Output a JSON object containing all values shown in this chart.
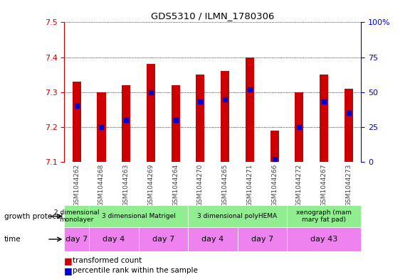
{
  "title": "GDS5310 / ILMN_1780306",
  "samples": [
    "GSM1044262",
    "GSM1044268",
    "GSM1044263",
    "GSM1044269",
    "GSM1044264",
    "GSM1044270",
    "GSM1044265",
    "GSM1044271",
    "GSM1044266",
    "GSM1044272",
    "GSM1044267",
    "GSM1044273"
  ],
  "transformed_counts": [
    7.33,
    7.3,
    7.32,
    7.38,
    7.32,
    7.35,
    7.36,
    7.4,
    7.19,
    7.3,
    7.35,
    7.31
  ],
  "percentile_ranks": [
    40,
    25,
    30,
    50,
    30,
    43,
    45,
    52,
    2,
    25,
    43,
    35
  ],
  "bar_bottom": 7.1,
  "ylim_left": [
    7.1,
    7.5
  ],
  "ylim_right": [
    0,
    100
  ],
  "yticks_left": [
    7.1,
    7.2,
    7.3,
    7.4,
    7.5
  ],
  "yticks_right": [
    0,
    25,
    50,
    75,
    100
  ],
  "bar_color": "#cc0000",
  "dot_color": "#0000cc",
  "grid_color": "#000000",
  "growth_protocol_groups": [
    {
      "label": "2 dimensional\nmonolayer",
      "start": 0,
      "end": 1
    },
    {
      "label": "3 dimensional Matrigel",
      "start": 1,
      "end": 5
    },
    {
      "label": "3 dimensional polyHEMA",
      "start": 5,
      "end": 9
    },
    {
      "label": "xenograph (mam\nmary fat pad)",
      "start": 9,
      "end": 12
    }
  ],
  "time_groups": [
    {
      "label": "day 7",
      "start": 0,
      "end": 1
    },
    {
      "label": "day 4",
      "start": 1,
      "end": 3
    },
    {
      "label": "day 7",
      "start": 3,
      "end": 5
    },
    {
      "label": "day 4",
      "start": 5,
      "end": 7
    },
    {
      "label": "day 7",
      "start": 7,
      "end": 9
    },
    {
      "label": "day 43",
      "start": 9,
      "end": 12
    }
  ],
  "tick_label_color": "#888888",
  "left_axis_color": "#cc0000",
  "right_axis_color": "#0000cc",
  "bar_width": 0.35,
  "gp_color": "#90EE90",
  "time_color": "#EE82EE",
  "sample_bg_color": "#d0d0d0",
  "fig_width": 5.83,
  "fig_height": 3.93
}
